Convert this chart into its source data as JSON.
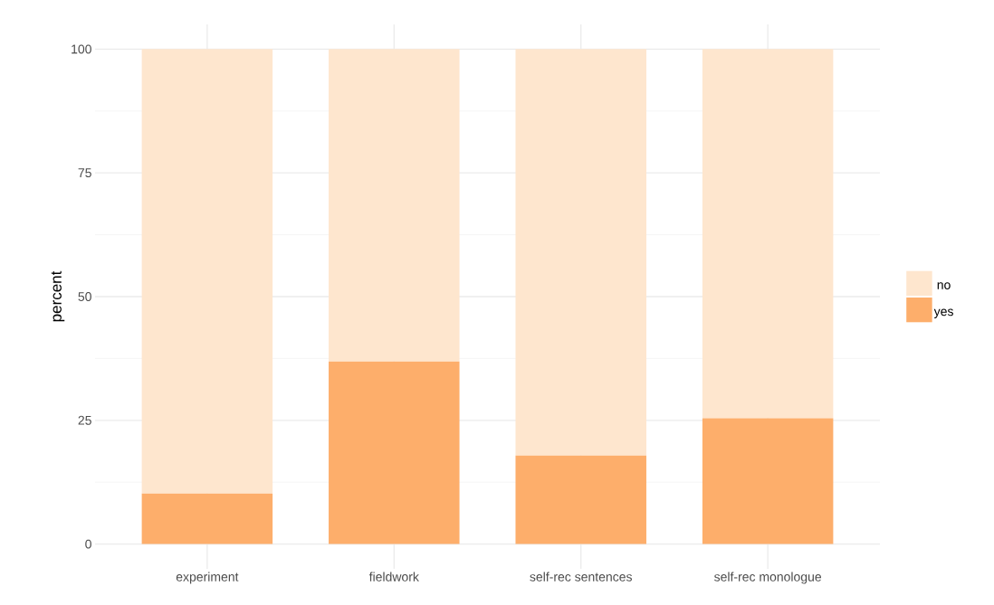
{
  "chart_data": {
    "type": "bar",
    "stacked": true,
    "ylabel": "percent",
    "categories": [
      "experiment",
      "fieldwork",
      "self-rec sentences",
      "self-rec monologue"
    ],
    "series": [
      {
        "name": "yes",
        "color": "#fdae6b",
        "values": [
          10.2,
          36.9,
          17.9,
          25.4
        ]
      },
      {
        "name": "no",
        "color": "#fee6ce",
        "values": [
          89.8,
          63.1,
          82.1,
          74.6
        ]
      }
    ],
    "ylim": [
      -5,
      105
    ],
    "yticks": [
      0,
      25,
      50,
      75,
      100
    ],
    "grid": true,
    "legend": "right"
  }
}
